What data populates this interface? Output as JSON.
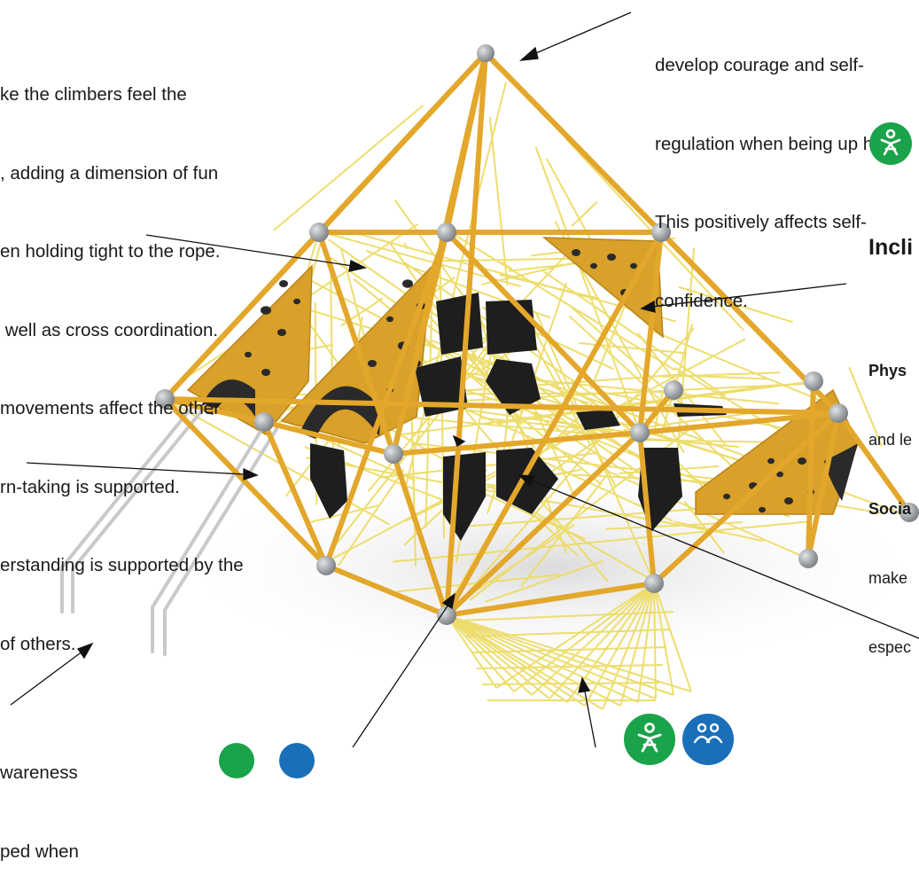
{
  "text_left_top": [
    "ke the climbers feel the",
    ", adding a dimension of fun",
    "en holding tight to the rope.",
    " well as cross coordination.",
    "movements affect the other",
    "rn-taking is supported.",
    "erstanding is supported by the",
    "of others."
  ],
  "text_right_top": [
    "develop courage and self-",
    "regulation when being up hi",
    "This positively affects self-",
    "confidence."
  ],
  "incline": {
    "heading": "Incli",
    "lines": [
      {
        "bold": "Phys",
        "rest": ""
      },
      {
        "bold": "",
        "rest": "and le"
      },
      {
        "bold": "Socia",
        "rest": ""
      },
      {
        "bold": "",
        "rest": "make"
      },
      {
        "bold": "",
        "rest": "espec"
      }
    ]
  },
  "text_bottom_left": [
    "wareness",
    "ped when"
  ],
  "badges": [
    {
      "name": "physical-play-icon",
      "color": "#1aa34a"
    },
    {
      "name": "physical-play-icon",
      "color": "#1aa34a"
    },
    {
      "name": "social-play-icon",
      "color": "#1a6fb8"
    }
  ],
  "colors": {
    "frame": "#e3a72b",
    "rope": "#eddc66",
    "panel": "#d9a02a",
    "hold": "#1e1e1e",
    "node": "#a9adb0",
    "ladder": "#c9c9c9"
  }
}
